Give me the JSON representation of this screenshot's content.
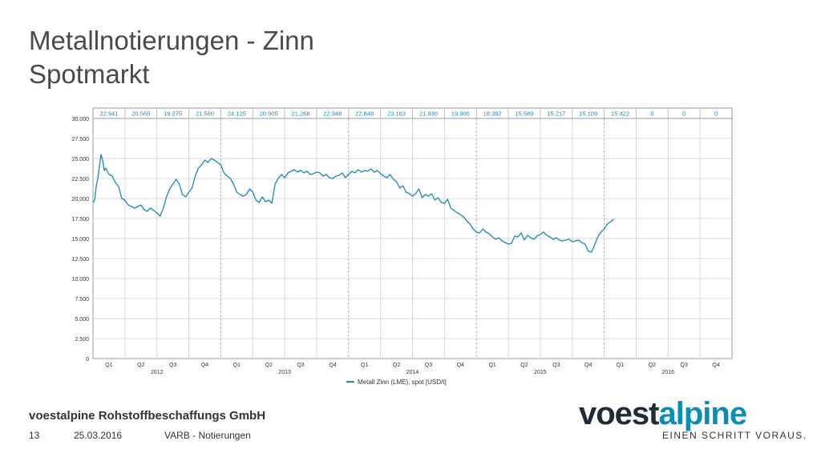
{
  "slide": {
    "title_line1": "Metallnotierungen - Zinn",
    "title_line2": "Spotmarkt",
    "company": "voestalpine Rohstoffbeschaffungs GmbH",
    "page_number": "13",
    "date": "25.03.2016",
    "section": "VARB - Notierungen",
    "logo_part1": "voest",
    "logo_part2": "alpine",
    "slogan": "EINEN SCHRITT VORAUS."
  },
  "colors": {
    "line": "#1e87b4",
    "header_text": "#1e87b4",
    "grid": "#d8d8d8"
  },
  "chart_data": {
    "type": "line",
    "title": "",
    "xlabel": "",
    "ylabel": "",
    "ylim": [
      0,
      30000
    ],
    "yticks": [
      "0",
      "2.500",
      "5.000",
      "7.500",
      "10.000",
      "12.500",
      "15.000",
      "17.500",
      "20.000",
      "22.500",
      "25.000",
      "27.500",
      "30.000"
    ],
    "quarters": [
      "Q1",
      "Q2",
      "Q3",
      "Q4",
      "Q1",
      "Q2",
      "Q3",
      "Q4",
      "Q1",
      "Q2",
      "Q3",
      "Q4",
      "Q1",
      "Q2",
      "Q3",
      "Q4",
      "Q1",
      "Q2",
      "Q3",
      "Q4"
    ],
    "years": [
      "2012",
      "2013",
      "2014",
      "2015",
      "2016"
    ],
    "quarter_averages": [
      "22.941",
      "20.565",
      "19.275",
      "21.560",
      "24.125",
      "20.905",
      "21.268",
      "22.948",
      "22.848",
      "23.163",
      "21.930",
      "19.900",
      "18.392",
      "15.589",
      "15.217",
      "15.109",
      "15.422",
      "0",
      "0",
      "0"
    ],
    "legend": "Metall Zinn (LME), spot [USD/t]",
    "series": [
      {
        "name": "Metall Zinn (LME), spot [USD/t]",
        "x_quarter_index": [
          0.0,
          0.05,
          0.1,
          0.15,
          0.2,
          0.25,
          0.3,
          0.35,
          0.4,
          0.5,
          0.6,
          0.7,
          0.8,
          0.9,
          1.0,
          1.1,
          1.2,
          1.3,
          1.4,
          1.5,
          1.6,
          1.7,
          1.8,
          1.9,
          2.0,
          2.1,
          2.2,
          2.3,
          2.4,
          2.5,
          2.6,
          2.7,
          2.8,
          2.9,
          3.0,
          3.1,
          3.2,
          3.3,
          3.4,
          3.5,
          3.6,
          3.7,
          3.8,
          3.9,
          4.0,
          4.1,
          4.2,
          4.3,
          4.4,
          4.5,
          4.6,
          4.7,
          4.8,
          4.9,
          5.0,
          5.1,
          5.2,
          5.3,
          5.4,
          5.5,
          5.6,
          5.7,
          5.8,
          5.9,
          6.0,
          6.1,
          6.2,
          6.3,
          6.4,
          6.5,
          6.6,
          6.7,
          6.8,
          6.9,
          7.0,
          7.1,
          7.2,
          7.3,
          7.4,
          7.5,
          7.6,
          7.7,
          7.8,
          7.9,
          8.0,
          8.1,
          8.2,
          8.3,
          8.4,
          8.5,
          8.6,
          8.7,
          8.8,
          8.9,
          9.0,
          9.1,
          9.2,
          9.3,
          9.4,
          9.5,
          9.6,
          9.7,
          9.8,
          9.9,
          10.0,
          10.1,
          10.2,
          10.3,
          10.4,
          10.5,
          10.6,
          10.7,
          10.8,
          10.9,
          11.0,
          11.1,
          11.2,
          11.3,
          11.4,
          11.5,
          11.6,
          11.7,
          11.8,
          11.9,
          12.0,
          12.1,
          12.2,
          12.3,
          12.4,
          12.5,
          12.6,
          12.7,
          12.8,
          12.9,
          13.0,
          13.1,
          13.2,
          13.3,
          13.4,
          13.5,
          13.6,
          13.7,
          13.8,
          13.9,
          14.0,
          14.1,
          14.2,
          14.3,
          14.4,
          14.5,
          14.6,
          14.7,
          14.8,
          14.9,
          15.0,
          15.1,
          15.2,
          15.3,
          15.4,
          15.5,
          15.6,
          15.7,
          15.8,
          15.9,
          16.0,
          16.1,
          16.2,
          16.3,
          16.4,
          16.5,
          16.6,
          16.7,
          16.8
        ],
        "values": [
          19500,
          19800,
          21500,
          22500,
          24000,
          25500,
          24800,
          23500,
          23800,
          23000,
          22800,
          22000,
          21500,
          20000,
          19800,
          19200,
          19000,
          18800,
          19000,
          19200,
          18600,
          18400,
          18800,
          18500,
          18200,
          17800,
          18800,
          20200,
          21200,
          21800,
          22400,
          21800,
          20500,
          20200,
          20800,
          21300,
          22800,
          23800,
          24200,
          24800,
          24500,
          25000,
          24800,
          24500,
          24200,
          23200,
          22800,
          22500,
          21800,
          20800,
          20500,
          20300,
          20500,
          21200,
          20800,
          19800,
          19500,
          20200,
          19600,
          19800,
          19400,
          21800,
          22500,
          23000,
          22600,
          23200,
          23400,
          23600,
          23300,
          23500,
          23200,
          23400,
          23000,
          23100,
          23300,
          23200,
          22800,
          23000,
          22600,
          22500,
          22800,
          22900,
          23200,
          22600,
          23000,
          23400,
          23200,
          23600,
          23300,
          23500,
          23400,
          23700,
          23300,
          23500,
          23100,
          22800,
          22600,
          23000,
          22400,
          22100,
          21300,
          21600,
          20800,
          20600,
          20300,
          20600,
          21200,
          20100,
          20500,
          20300,
          20600,
          19800,
          20100,
          19500,
          19400,
          19900,
          18800,
          18500,
          18200,
          18000,
          17700,
          17200,
          16800,
          16200,
          15800,
          15700,
          16200,
          15800,
          15600,
          15200,
          14900,
          15100,
          14700,
          14500,
          14300,
          14400,
          15300,
          15200,
          15700,
          14800,
          15400,
          15100,
          14900,
          15300,
          15500,
          15800,
          15400,
          15200,
          14900,
          15100,
          14800,
          14700,
          14800,
          14900,
          14600,
          14700,
          14800,
          14500,
          14300,
          13400,
          13300,
          14200,
          15200,
          15800,
          16200,
          16800,
          17100,
          17400
        ]
      }
    ]
  }
}
